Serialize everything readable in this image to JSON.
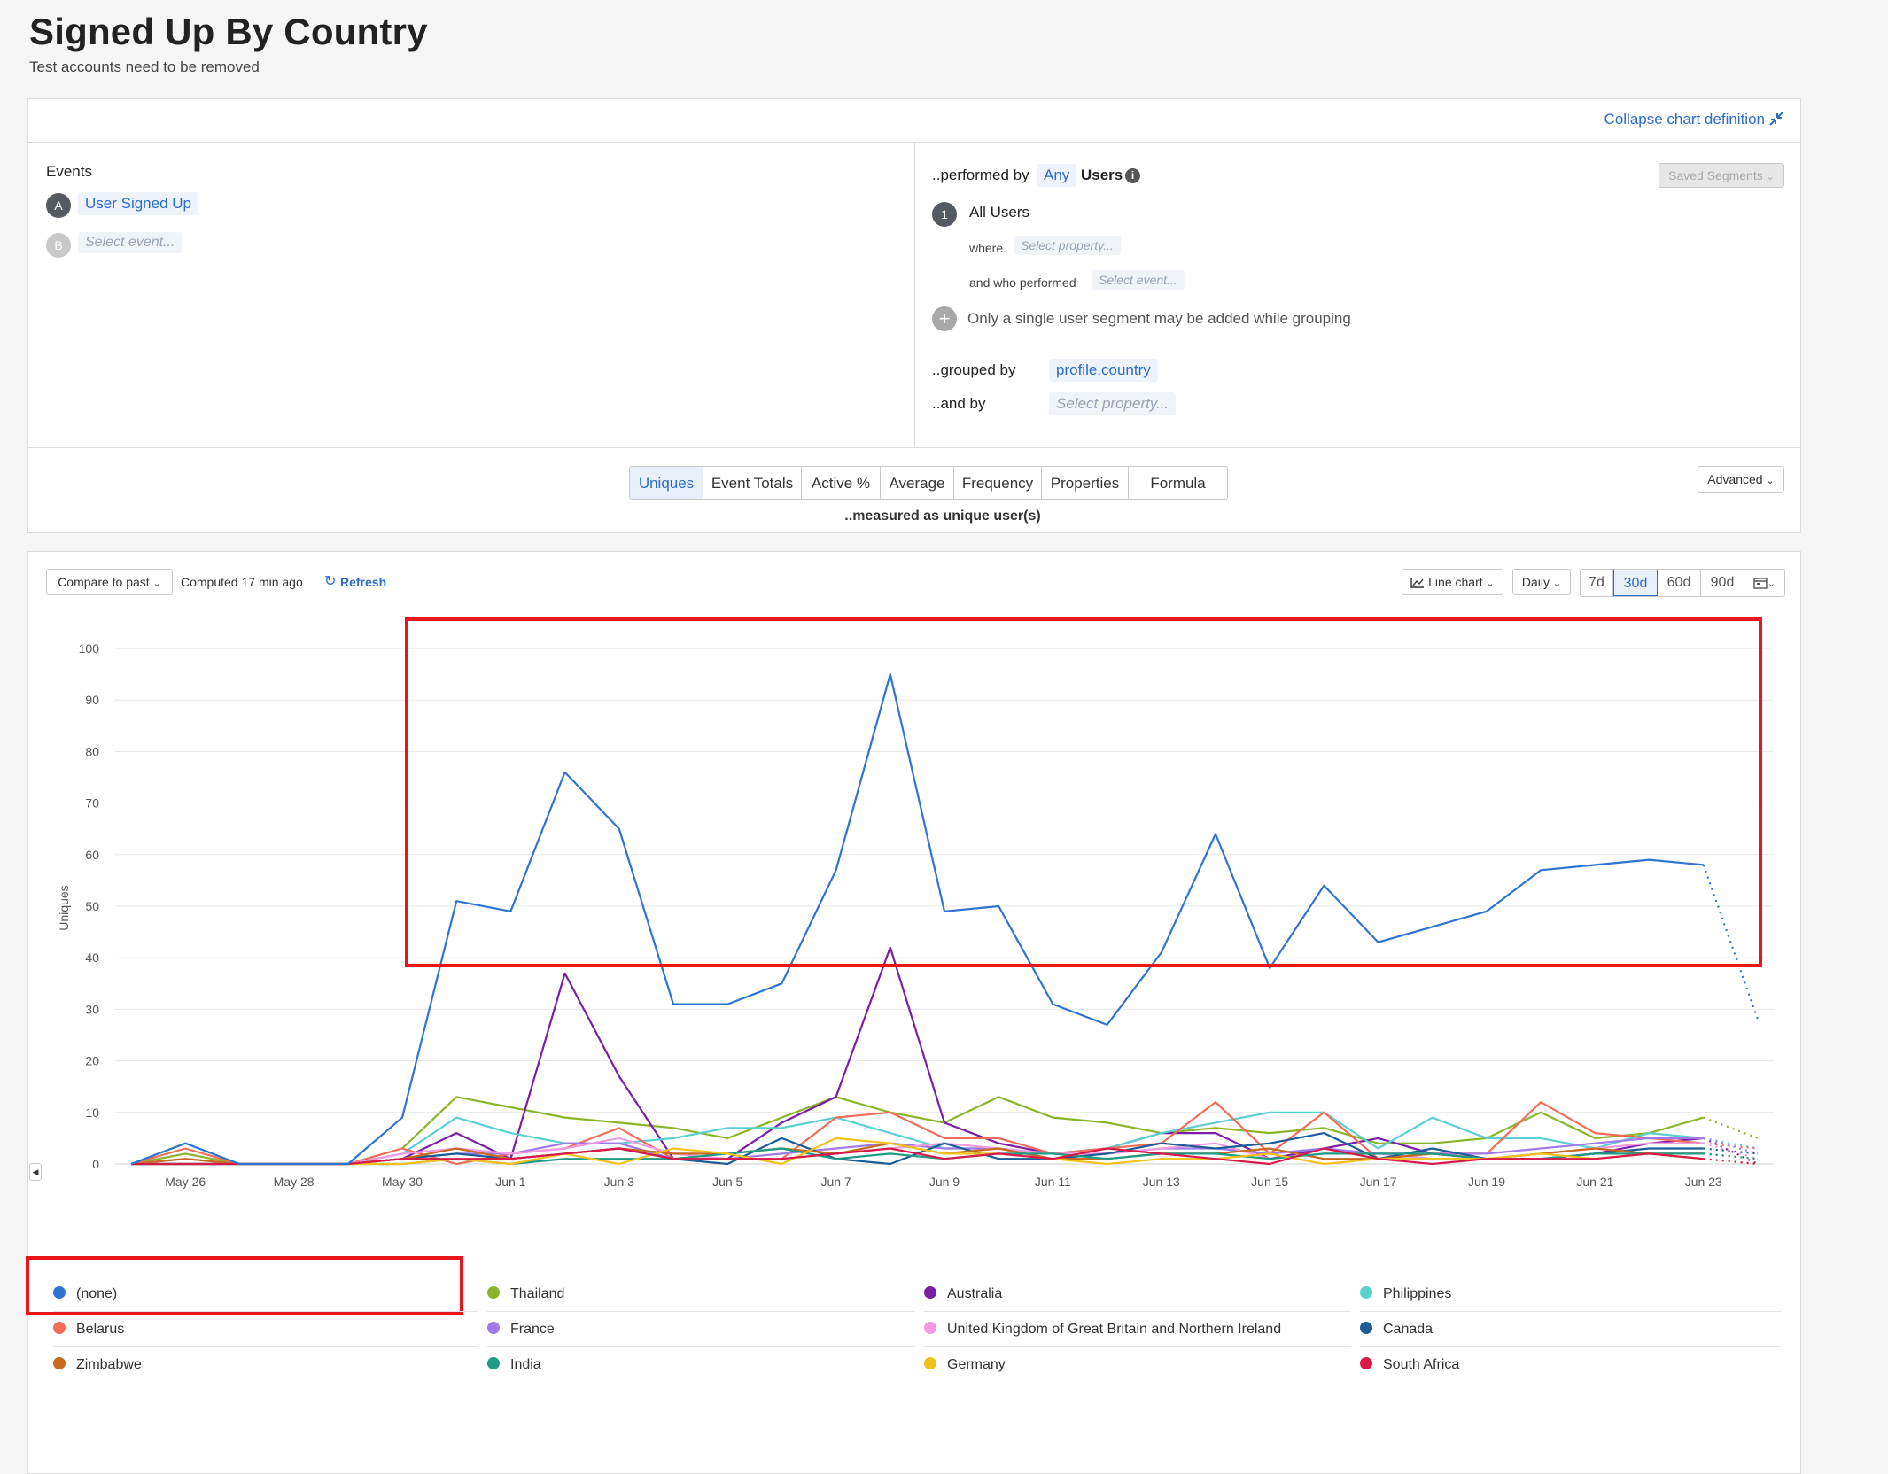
{
  "header": {
    "title": "Signed Up By Country",
    "subtitle": "Test accounts need to be removed"
  },
  "definition": {
    "collapse_label": "Collapse chart definition",
    "events_heading": "Events",
    "event_a_letter": "A",
    "event_a_label": "User Signed Up",
    "event_b_letter": "B",
    "event_b_placeholder": "Select event...",
    "performed_by_label": "..performed by",
    "performed_by_value": "Any",
    "users_label": "Users",
    "saved_segments_label": "Saved Segments",
    "segment_number": "1",
    "segment_label": "All Users",
    "where_label": "where",
    "where_placeholder": "Select property...",
    "who_performed_label": "and who performed",
    "who_performed_placeholder": "Select event...",
    "add_segment_note": "Only a single user segment may be added while grouping",
    "grouped_by_label": "..grouped by",
    "grouped_by_value": "profile.country",
    "and_by_label": "..and by",
    "and_by_placeholder": "Select property..."
  },
  "measure": {
    "tabs": [
      "Uniques",
      "Event Totals",
      "Active %",
      "Average",
      "Frequency",
      "Properties",
      "Formula"
    ],
    "active_tab": "Uniques",
    "advanced_label": "Advanced",
    "measured_as": "..measured as unique user(s)"
  },
  "toolbar": {
    "compare_label": "Compare to past",
    "computed_label": "Computed 17 min ago",
    "refresh_label": "Refresh",
    "chart_type_label": "Line chart",
    "interval_label": "Daily",
    "ranges": [
      "7d",
      "30d",
      "60d",
      "90d"
    ],
    "active_range": "30d"
  },
  "chart_data": {
    "type": "line",
    "ylabel": "Uniques",
    "ylim": [
      0,
      100
    ],
    "yticks": [
      0,
      10,
      20,
      30,
      40,
      50,
      60,
      70,
      80,
      90,
      100
    ],
    "x": [
      "May 25",
      "May 26",
      "May 27",
      "May 28",
      "May 29",
      "May 30",
      "May 31",
      "Jun 1",
      "Jun 2",
      "Jun 3",
      "Jun 4",
      "Jun 5",
      "Jun 6",
      "Jun 7",
      "Jun 8",
      "Jun 9",
      "Jun 10",
      "Jun 11",
      "Jun 12",
      "Jun 13",
      "Jun 14",
      "Jun 15",
      "Jun 16",
      "Jun 17",
      "Jun 18",
      "Jun 19",
      "Jun 20",
      "Jun 21",
      "Jun 22",
      "Jun 23",
      "Jun 24"
    ],
    "xtick_labels": [
      "May 26",
      "May 28",
      "May 30",
      "Jun 1",
      "Jun 3",
      "Jun 5",
      "Jun 7",
      "Jun 9",
      "Jun 11",
      "Jun 13",
      "Jun 15",
      "Jun 17",
      "Jun 19",
      "Jun 21",
      "Jun 23"
    ],
    "grid": true,
    "legend": "bottom",
    "last_point_partial": true,
    "series": [
      {
        "name": "(none)",
        "color": "#2f74d0",
        "values": [
          0,
          4,
          0,
          0,
          0,
          9,
          51,
          49,
          76,
          65,
          31,
          31,
          35,
          57,
          95,
          49,
          50,
          31,
          27,
          41,
          64,
          38,
          54,
          43,
          46,
          49,
          57,
          58,
          59,
          58,
          28
        ]
      },
      {
        "name": "Thailand",
        "color": "#8ab52a",
        "values": [
          0,
          2,
          0,
          0,
          0,
          3,
          13,
          11,
          9,
          8,
          7,
          5,
          9,
          13,
          10,
          8,
          13,
          9,
          8,
          6,
          7,
          6,
          7,
          4,
          4,
          5,
          10,
          5,
          6,
          9,
          5
        ]
      },
      {
        "name": "Australia",
        "color": "#7a1ea6",
        "values": [
          0,
          0,
          0,
          0,
          0,
          1,
          6,
          1,
          37,
          17,
          1,
          1,
          8,
          13,
          42,
          8,
          4,
          2,
          3,
          6,
          6,
          1,
          3,
          5,
          2,
          1,
          1,
          2,
          4,
          5,
          0
        ]
      },
      {
        "name": "Philippines",
        "color": "#5bcfd0",
        "values": [
          0,
          0,
          0,
          0,
          0,
          2,
          9,
          6,
          4,
          4,
          5,
          7,
          7,
          9,
          6,
          3,
          3,
          2,
          3,
          6,
          8,
          10,
          10,
          3,
          9,
          5,
          5,
          3,
          6,
          5,
          3
        ]
      },
      {
        "name": "Belarus",
        "color": "#f26c5a",
        "values": [
          0,
          3,
          0,
          0,
          0,
          3,
          0,
          2,
          3,
          7,
          1,
          1,
          1,
          9,
          10,
          5,
          5,
          2,
          3,
          4,
          12,
          2,
          10,
          1,
          2,
          2,
          12,
          6,
          5,
          4,
          3
        ]
      },
      {
        "name": "France",
        "color": "#a07ae9",
        "values": [
          0,
          0,
          0,
          0,
          0,
          1,
          2,
          2,
          4,
          4,
          1,
          1,
          2,
          3,
          4,
          3,
          3,
          1,
          2,
          3,
          3,
          2,
          3,
          2,
          2,
          2,
          3,
          4,
          5,
          5,
          2
        ]
      },
      {
        "name": "United Kingdom of Great Britain and Northern Ireland",
        "color": "#f19ae0",
        "values": [
          0,
          1,
          0,
          0,
          0,
          2,
          3,
          2,
          3,
          5,
          2,
          1,
          1,
          2,
          3,
          4,
          3,
          2,
          2,
          3,
          4,
          1,
          2,
          2,
          1,
          1,
          2,
          3,
          4,
          4,
          1
        ]
      },
      {
        "name": "Canada",
        "color": "#1d5d97",
        "values": [
          0,
          0,
          0,
          0,
          0,
          1,
          2,
          1,
          2,
          3,
          1,
          0,
          5,
          1,
          0,
          4,
          1,
          1,
          2,
          4,
          3,
          4,
          6,
          1,
          3,
          1,
          1,
          2,
          3,
          3,
          2
        ]
      },
      {
        "name": "Zimbabwe",
        "color": "#c86a1e",
        "values": [
          0,
          1,
          0,
          0,
          0,
          1,
          3,
          1,
          2,
          3,
          2,
          2,
          3,
          2,
          4,
          2,
          3,
          1,
          1,
          2,
          2,
          3,
          1,
          1,
          2,
          1,
          2,
          3,
          2,
          2,
          1
        ]
      },
      {
        "name": "India",
        "color": "#1f9a84",
        "values": [
          0,
          0,
          0,
          0,
          0,
          0,
          1,
          0,
          1,
          1,
          1,
          2,
          3,
          1,
          2,
          1,
          2,
          2,
          1,
          2,
          2,
          1,
          2,
          2,
          2,
          1,
          1,
          2,
          2,
          2,
          1
        ]
      },
      {
        "name": "Germany",
        "color": "#f2c21c",
        "values": [
          0,
          0,
          0,
          0,
          0,
          0,
          1,
          0,
          2,
          0,
          3,
          2,
          0,
          5,
          4,
          2,
          2,
          1,
          0,
          1,
          1,
          2,
          0,
          1,
          1,
          1,
          2,
          1,
          2,
          1,
          0
        ]
      },
      {
        "name": "South Africa",
        "color": "#d81a4b",
        "values": [
          0,
          0,
          0,
          0,
          0,
          1,
          1,
          1,
          2,
          3,
          1,
          1,
          1,
          2,
          3,
          1,
          2,
          1,
          3,
          2,
          1,
          0,
          3,
          1,
          0,
          1,
          1,
          1,
          2,
          1,
          0
        ]
      }
    ]
  }
}
